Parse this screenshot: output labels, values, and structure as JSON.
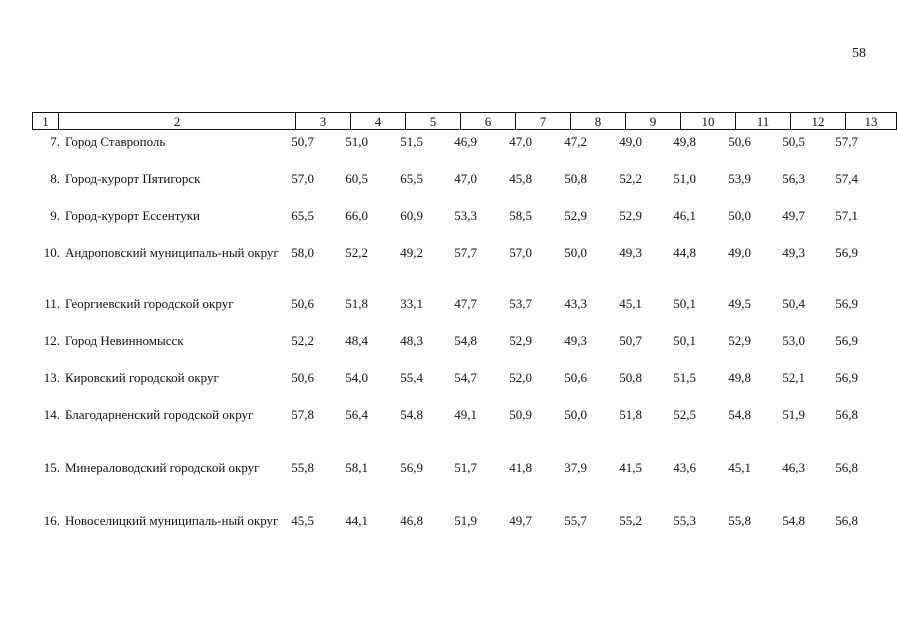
{
  "page_number": "58",
  "header": [
    "1",
    "2",
    "3",
    "4",
    "5",
    "6",
    "7",
    "8",
    "9",
    "10",
    "11",
    "12",
    "13"
  ],
  "rows": [
    {
      "num": "7.",
      "name": "Город Ставрополь",
      "values": [
        "50,7",
        "51,0",
        "51,5",
        "46,9",
        "47,0",
        "47,2",
        "49,0",
        "49,8",
        "50,6",
        "50,5",
        "57,7"
      ]
    },
    {
      "num": "8.",
      "name": "Город-курорт Пятигорск",
      "values": [
        "57,0",
        "60,5",
        "65,5",
        "47,0",
        "45,8",
        "50,8",
        "52,2",
        "51,0",
        "53,9",
        "56,3",
        "57,4"
      ]
    },
    {
      "num": "9.",
      "name": "Город-курорт Ессентуки",
      "values": [
        "65,5",
        "66,0",
        "60,9",
        "53,3",
        "58,5",
        "52,9",
        "52,9",
        "46,1",
        "50,0",
        "49,7",
        "57,1"
      ]
    },
    {
      "num": "10.",
      "name": "Андроповский муниципаль-ный округ",
      "values": [
        "58,0",
        "52,2",
        "49,2",
        "57,7",
        "57,0",
        "50,0",
        "49,3",
        "44,8",
        "49,0",
        "49,3",
        "56,9"
      ]
    },
    {
      "num": "11.",
      "name": "Георгиевский городской округ",
      "values": [
        "50,6",
        "51,8",
        "33,1",
        "47,7",
        "53,7",
        "43,3",
        "45,1",
        "50,1",
        "49,5",
        "50,4",
        "56,9"
      ]
    },
    {
      "num": "12.",
      "name": "Город Невинномысск",
      "values": [
        "52,2",
        "48,4",
        "48,3",
        "54,8",
        "52,9",
        "49,3",
        "50,7",
        "50,1",
        "52,9",
        "53,0",
        "56,9"
      ]
    },
    {
      "num": "13.",
      "name": "Кировский городской округ",
      "values": [
        "50,6",
        "54,0",
        "55,4",
        "54,7",
        "52,0",
        "50,6",
        "50,8",
        "51,5",
        "49,8",
        "52,1",
        "56,9"
      ]
    },
    {
      "num": "14.",
      "name": "Благодарненский городской округ",
      "values": [
        "57,8",
        "56,4",
        "54,8",
        "49,1",
        "50,9",
        "50,0",
        "51,8",
        "52,5",
        "54,8",
        "51,9",
        "56,8"
      ]
    },
    {
      "num": "15.",
      "name": "Минераловодский городской округ",
      "values": [
        "55,8",
        "58,1",
        "56,9",
        "51,7",
        "41,8",
        "37,9",
        "41,5",
        "43,6",
        "45,1",
        "46,3",
        "56,8"
      ]
    },
    {
      "num": "16.",
      "name": "Новоселицкий муниципаль-ный округ",
      "values": [
        "45,5",
        "44,1",
        "46,8",
        "51,9",
        "49,7",
        "55,7",
        "55,2",
        "55,3",
        "55,8",
        "54,8",
        "56,8"
      ]
    }
  ]
}
